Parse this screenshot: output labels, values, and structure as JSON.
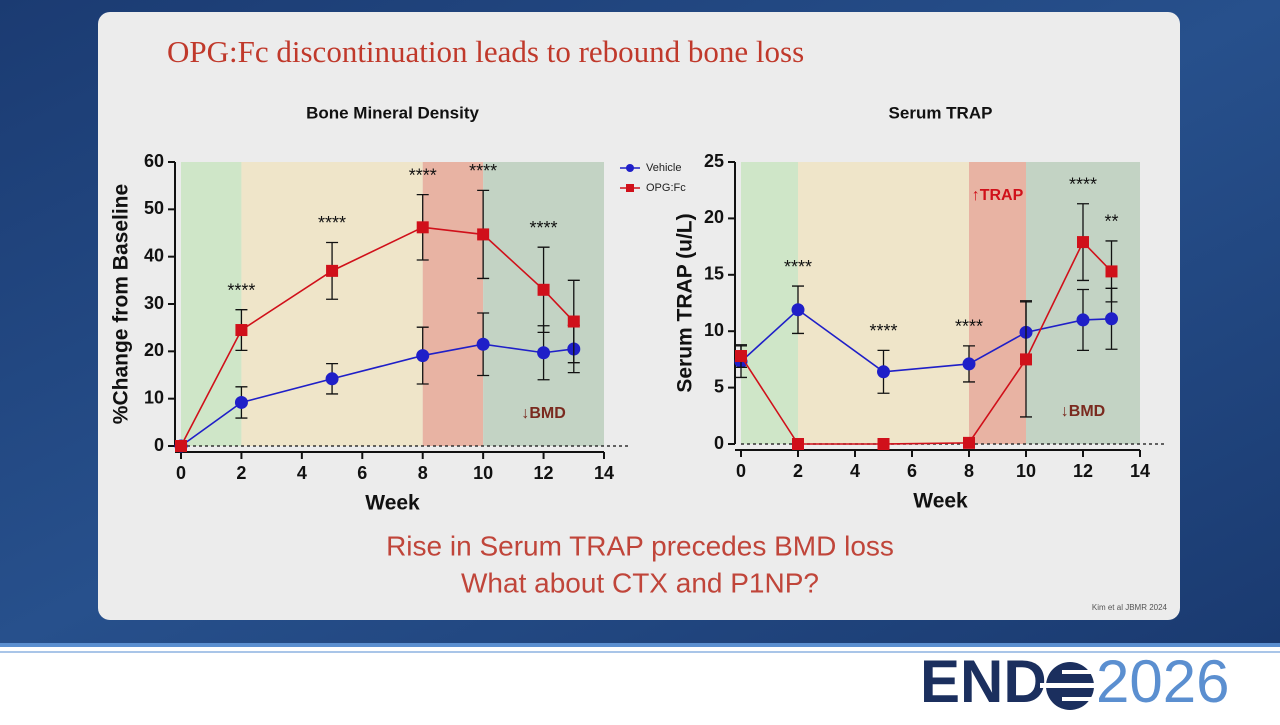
{
  "title": "OPG:Fc discontinuation leads to rebound bone loss",
  "chart_data": [
    {
      "type": "line",
      "title": "Bone Mineral Density",
      "xlabel": "Week",
      "ylabel": "%Change from Baseline",
      "xlim": [
        0,
        14
      ],
      "xticks": [
        0,
        2,
        4,
        6,
        8,
        10,
        12,
        14
      ],
      "ylim": [
        0,
        60
      ],
      "yticks": [
        0,
        10,
        20,
        30,
        40,
        50,
        60
      ],
      "x": [
        0,
        2,
        5,
        8,
        10,
        12,
        13
      ],
      "series": [
        {
          "name": "Vehicle",
          "color": "#1f1fc8",
          "marker": "circle",
          "values": [
            0,
            9.2,
            14.2,
            19.1,
            21.5,
            19.7,
            20.5
          ],
          "errors": [
            0,
            3.3,
            3.2,
            6,
            6.6,
            5.7,
            5
          ]
        },
        {
          "name": "OPG:Fc",
          "color": "#d0101a",
          "marker": "square",
          "values": [
            0,
            24.5,
            37,
            46.2,
            44.7,
            33,
            26.3
          ],
          "errors": [
            0,
            4.3,
            6,
            6.9,
            9.3,
            9,
            8.7
          ]
        }
      ],
      "bands": [
        {
          "from": 0,
          "to": 2,
          "color": "#cfe6c8"
        },
        {
          "from": 2,
          "to": 8,
          "color": "#efe5c9"
        },
        {
          "from": 8,
          "to": 10,
          "color": "#e8b3a3"
        },
        {
          "from": 10,
          "to": 14,
          "color": "#c3d3c4",
          "label": "↓BMD",
          "label_color": "#7a2a1f",
          "label_position": "bottom"
        }
      ],
      "annotations": [
        {
          "x": 2,
          "text": "****"
        },
        {
          "x": 5,
          "text": "****"
        },
        {
          "x": 8,
          "text": "****"
        },
        {
          "x": 10,
          "text": "****"
        },
        {
          "x": 12,
          "text": "****"
        }
      ],
      "legend": "outside-right"
    },
    {
      "type": "line",
      "title": "Serum TRAP",
      "xlabel": "Week",
      "ylabel": "Serum TRAP (u/L)",
      "xlim": [
        0,
        14
      ],
      "xticks": [
        0,
        2,
        4,
        6,
        8,
        10,
        12,
        14
      ],
      "ylim": [
        0,
        25
      ],
      "yticks": [
        0,
        5,
        10,
        15,
        20,
        25
      ],
      "x": [
        0,
        2,
        5,
        8,
        10,
        12,
        13
      ],
      "series": [
        {
          "color": "#1f1fc8",
          "marker": "circle",
          "values": [
            7.3,
            11.9,
            6.4,
            7.1,
            9.9,
            11,
            11.1
          ],
          "errors": [
            1.4,
            2.1,
            1.9,
            1.6,
            2.8,
            2.7,
            2.7
          ]
        },
        {
          "color": "#d0101a",
          "marker": "square",
          "values": [
            7.8,
            0,
            0,
            0.1,
            7.5,
            17.9,
            15.3
          ],
          "errors": [
            1,
            0,
            0,
            0,
            5.1,
            3.4,
            2.7
          ]
        }
      ],
      "bands": [
        {
          "from": 0,
          "to": 2,
          "color": "#cfe6c8"
        },
        {
          "from": 2,
          "to": 8,
          "color": "#efe5c9"
        },
        {
          "from": 8,
          "to": 10,
          "color": "#e8b3a3",
          "label": "↑TRAP",
          "label_color": "#d0101a",
          "label_position": "top"
        },
        {
          "from": 10,
          "to": 14,
          "color": "#c3d3c4",
          "label": "↓BMD",
          "label_color": "#7a2a1f",
          "label_position": "bottom"
        }
      ],
      "annotations": [
        {
          "x": 2,
          "text": "****"
        },
        {
          "x": 5,
          "text": "****"
        },
        {
          "x": 8,
          "text": "****"
        },
        {
          "x": 12,
          "text": "****"
        },
        {
          "x": 13,
          "text": "**"
        }
      ]
    }
  ],
  "conclusion": [
    "Rise in Serum TRAP precedes BMD loss",
    "What about CTX and P1NP?"
  ],
  "citation": "Kim et al JBMR 2024",
  "logo": {
    "left": "END",
    "right": "2026"
  }
}
